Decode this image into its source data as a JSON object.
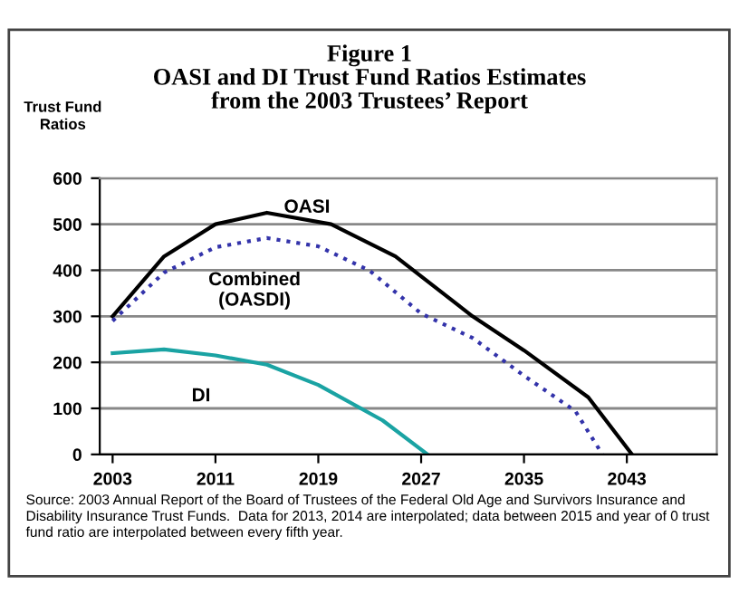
{
  "chart_data": {
    "type": "line",
    "title": "Figure 1\nOASI and DI Trust Fund Ratios Estimates\nfrom the 2003 Trustees’ Report",
    "ylabel": "Trust Fund\nRatios",
    "series": [
      {
        "name": "OASI",
        "color": "#000000",
        "line_style": "solid",
        "x": [
          2003,
          2007,
          2011,
          2015,
          2020,
          2025,
          2031,
          2035,
          2040,
          2043.4
        ],
        "values": [
          300,
          430,
          500,
          525,
          500,
          430,
          300,
          226,
          124,
          0
        ]
      },
      {
        "name": "Combined\n(OASDI)",
        "color": "#3333aa",
        "line_style": "dotted",
        "x": [
          2003,
          2007,
          2011,
          2015,
          2019,
          2023,
          2027,
          2031,
          2035,
          2039,
          2041.1
        ],
        "values": [
          290,
          395,
          450,
          470,
          452,
          399,
          306,
          253,
          171,
          94,
          0
        ]
      },
      {
        "name": "DI",
        "color": "#1aa3a3",
        "line_style": "solid",
        "x": [
          2003,
          2007,
          2011,
          2015,
          2019,
          2024,
          2027.5
        ],
        "values": [
          220,
          228,
          215,
          195,
          151,
          74,
          0
        ]
      }
    ],
    "xlim": [
      2002,
      2050
    ],
    "xticks": [
      2003,
      2011,
      2019,
      2027,
      2035,
      2043
    ],
    "ylim": [
      0,
      600
    ],
    "yticks": [
      0,
      100,
      200,
      300,
      400,
      500,
      600
    ],
    "grid": "y",
    "legend": false,
    "marker": "none",
    "annotations": [
      "Source: 2003 Annual Report of the Board of Trustees of the Federal Old Age and Survivors Insurance and Disability Insurance Trust Funds.  Data for 2013, 2014 are interpolated; data between 2015 and year of 0 trust fund ratio are interpolated between every fifth year."
    ]
  }
}
